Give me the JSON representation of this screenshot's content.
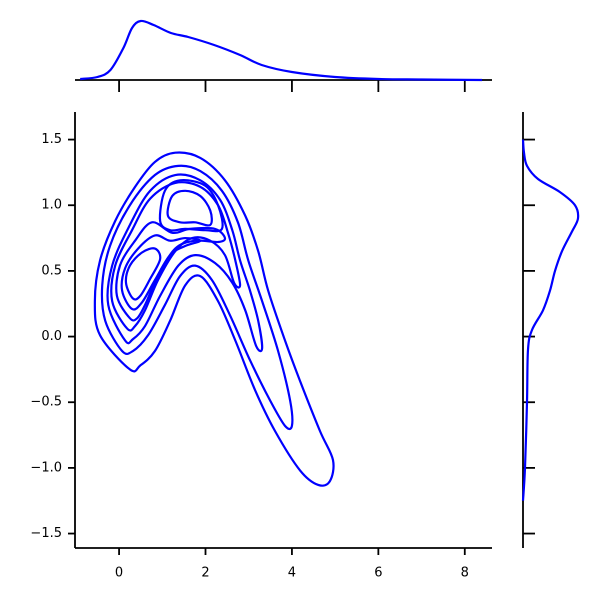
{
  "chart_data": {
    "type": "kde_joint",
    "color": "#0000ff",
    "xlim": [
      -1.02,
      8.63
    ],
    "ylim": [
      -1.61,
      1.71
    ],
    "xticks": [
      0,
      2,
      4,
      6,
      8
    ],
    "yticks": [
      {
        "value": -1.5,
        "label": "−1.5"
      },
      {
        "value": -1.0,
        "label": "−1.0"
      },
      {
        "value": -0.5,
        "label": "−0.5"
      },
      {
        "value": 0.0,
        "label": "0.0"
      },
      0.5,
      {
        "value": 1.0,
        "label": "1.0"
      },
      1.5
    ],
    "contours": [
      {
        "x": [
          0.25,
          -0.44,
          -0.56,
          -0.44,
          -0.09,
          0.37,
          0.83,
          1.3,
          1.88,
          2.45,
          2.92,
          3.22,
          3.45,
          3.84,
          4.19,
          4.65,
          4.95,
          4.88,
          4.61,
          4.19,
          3.61,
          3.15,
          2.69,
          2.29,
          1.88,
          1.53,
          1.18,
          0.83,
          0.49
        ],
        "y": [
          -0.25,
          0.01,
          0.27,
          0.58,
          0.88,
          1.14,
          1.33,
          1.4,
          1.36,
          1.19,
          0.92,
          0.65,
          0.35,
          -0.03,
          -0.34,
          -0.72,
          -0.94,
          -1.1,
          -1.13,
          -1.02,
          -0.72,
          -0.41,
          -0.03,
          0.27,
          0.46,
          0.39,
          0.12,
          -0.11,
          -0.22
        ]
      },
      {
        "x": [
          0.07,
          -0.32,
          -0.39,
          -0.21,
          0.25,
          0.83,
          1.37,
          1.88,
          2.38,
          2.75,
          2.99,
          3.31,
          3.68,
          3.96,
          4.0,
          3.84,
          3.5,
          3.03,
          2.57,
          2.15,
          1.76,
          1.41,
          1.06,
          0.67,
          0.32
        ],
        "y": [
          -0.11,
          0.12,
          0.39,
          0.69,
          1.0,
          1.23,
          1.3,
          1.26,
          1.11,
          0.87,
          0.58,
          0.27,
          -0.11,
          -0.49,
          -0.68,
          -0.68,
          -0.49,
          -0.18,
          0.16,
          0.43,
          0.54,
          0.46,
          0.24,
          0.01,
          -0.11
        ]
      },
      {
        "x": [
          0.14,
          -0.25,
          -0.16,
          0.25,
          0.72,
          1.3,
          1.88,
          2.34,
          2.62,
          2.8,
          3.03,
          3.22,
          3.31,
          3.17,
          2.92,
          2.62,
          2.22,
          1.76,
          1.37,
          0.95,
          0.6,
          0.32
        ],
        "y": [
          -0.03,
          0.24,
          0.54,
          0.85,
          1.11,
          1.23,
          1.19,
          1.04,
          0.81,
          0.58,
          0.35,
          0.12,
          -0.09,
          -0.07,
          0.2,
          0.41,
          0.56,
          0.62,
          0.54,
          0.31,
          0.08,
          -0.02
        ]
      },
      {
        "x": [
          0.19,
          -0.16,
          -0.09,
          0.3,
          0.72,
          1.3,
          1.88,
          2.29,
          2.52,
          2.69,
          2.8,
          2.66,
          2.45,
          2.11,
          1.69,
          1.3,
          0.9,
          0.6,
          0.37
        ],
        "y": [
          0.06,
          0.27,
          0.54,
          0.81,
          1.05,
          1.17,
          1.14,
          1.0,
          0.79,
          0.58,
          0.39,
          0.41,
          0.62,
          0.73,
          0.75,
          0.65,
          0.43,
          0.2,
          0.08
        ]
      },
      {
        "x": [
          0.25,
          -0.05,
          0.02,
          0.37,
          0.76,
          1.23,
          1.64,
          2.22,
          2.45,
          2.29,
          1.76,
          1.3,
          0.9,
          0.6,
          0.42
        ],
        "y": [
          0.14,
          0.31,
          0.54,
          0.73,
          0.87,
          0.79,
          0.82,
          0.82,
          0.75,
          0.72,
          0.73,
          0.67,
          0.46,
          0.24,
          0.14
        ]
      },
      {
        "x": [
          0.3,
          0.07,
          0.14,
          0.44,
          0.83,
          1.18,
          1.53,
          1.88,
          1.53,
          1.18,
          0.83,
          0.53
        ],
        "y": [
          0.21,
          0.35,
          0.52,
          0.67,
          0.77,
          0.73,
          0.75,
          0.73,
          0.69,
          0.62,
          0.43,
          0.26
        ]
      },
      {
        "x": [
          0.32,
          0.16,
          0.25,
          0.53,
          0.83,
          0.95,
          0.72,
          0.49
        ],
        "y": [
          0.29,
          0.41,
          0.54,
          0.64,
          0.67,
          0.59,
          0.44,
          0.31
        ]
      },
      {
        "x": [
          0.95,
          1.06,
          1.41,
          1.99,
          2.29,
          2.38,
          1.99,
          1.53,
          1.18
        ],
        "y": [
          0.88,
          1.11,
          1.19,
          1.15,
          1.0,
          0.82,
          0.81,
          0.82,
          0.81
        ]
      },
      {
        "x": [
          1.13,
          1.23,
          1.53,
          1.88,
          2.11,
          2.11,
          1.76,
          1.41
        ],
        "y": [
          0.92,
          1.07,
          1.11,
          1.07,
          0.96,
          0.85,
          0.87,
          0.87
        ]
      }
    ],
    "x_marginal": {
      "lim": [
        0,
        0.4
      ],
      "x": [
        -0.9,
        -0.5,
        -0.2,
        0.1,
        0.3,
        0.5,
        0.8,
        1.2,
        1.6,
        2.2,
        2.8,
        3.3,
        4,
        5,
        6,
        7,
        8.4
      ],
      "density": [
        0.005,
        0.015,
        0.05,
        0.16,
        0.26,
        0.295,
        0.275,
        0.235,
        0.215,
        0.175,
        0.125,
        0.075,
        0.04,
        0.015,
        0.005,
        0.0025,
        0
      ]
    },
    "y_marginal": {
      "lim": [
        0,
        0.38
      ],
      "y": [
        -1.25,
        -1.0,
        -0.5,
        -0.1,
        0.05,
        0.2,
        0.35,
        0.5,
        0.65,
        0.8,
        0.9,
        1.0,
        1.1,
        1.2,
        1.3,
        1.4,
        1.5
      ],
      "density": [
        0,
        0.01,
        0.02,
        0.025,
        0.045,
        0.1,
        0.135,
        0.16,
        0.195,
        0.245,
        0.275,
        0.26,
        0.185,
        0.075,
        0.02,
        0.005,
        0
      ]
    }
  }
}
